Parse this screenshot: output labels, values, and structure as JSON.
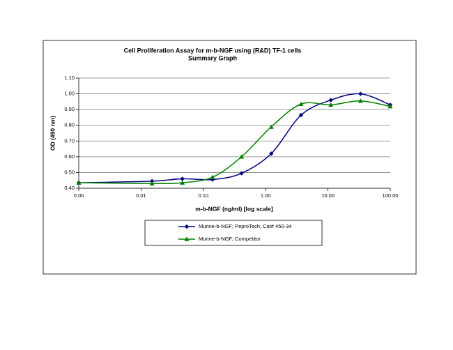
{
  "chart_data": {
    "type": "line",
    "title": "Cell Proliferation Assay for m-b-NGF using (R&D) TF-1 cells",
    "subtitle": "Summary Graph",
    "x_label": "m-b-NGF (ng/ml) [log scale]",
    "y_label": "OD (490 nm)",
    "x_log": true,
    "grid": true,
    "x": [
      0.001,
      0.015,
      0.046,
      0.14,
      0.41,
      1.23,
      3.7,
      11.1,
      33.3,
      100
    ],
    "xlim": [
      0.001,
      100
    ],
    "xticks": [
      {
        "value": 0.001,
        "label": "0.00"
      },
      {
        "value": 0.01,
        "label": "0.01"
      },
      {
        "value": 0.1,
        "label": "0.10"
      },
      {
        "value": 1,
        "label": "1.00"
      },
      {
        "value": 10,
        "label": "10.00"
      },
      {
        "value": 100,
        "label": "100.00"
      }
    ],
    "ylim": [
      0.4,
      1.1
    ],
    "yticks": [
      {
        "value": 0.4,
        "label": "0.40"
      },
      {
        "value": 0.5,
        "label": "0.50"
      },
      {
        "value": 0.6,
        "label": "0.60"
      },
      {
        "value": 0.7,
        "label": "0.70"
      },
      {
        "value": 0.8,
        "label": "0.80"
      },
      {
        "value": 0.9,
        "label": "0.90"
      },
      {
        "value": 1.0,
        "label": "1.00"
      },
      {
        "value": 1.1,
        "label": "1.10"
      }
    ],
    "series": [
      {
        "name": "Murine-b-NGF; PeproTech; Cat# 450-34",
        "color": "#000080",
        "marker": "diamond",
        "values": [
          0.435,
          0.445,
          0.46,
          0.455,
          0.495,
          0.62,
          0.865,
          0.96,
          1.0,
          0.93
        ]
      },
      {
        "name": "Murine-b-NGF; Competitor",
        "color": "#008000",
        "marker": "triangle",
        "values": [
          0.435,
          0.43,
          0.435,
          0.47,
          0.6,
          0.79,
          0.935,
          0.93,
          0.955,
          0.92
        ]
      }
    ]
  }
}
